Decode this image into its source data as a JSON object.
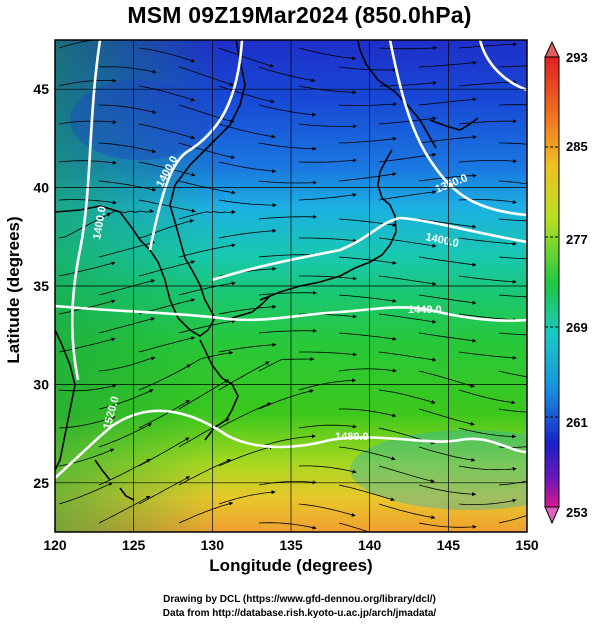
{
  "title": "MSM 09Z19Mar2024 (850.0hPa)",
  "map": {
    "xlabel": "Longitude (degrees)",
    "ylabel": "Latitude  (degrees)",
    "lon_range": [
      120,
      150
    ],
    "lat_range": [
      22.5,
      47.5
    ],
    "lon_ticks": [
      "120",
      "125",
      "130",
      "135",
      "140",
      "145",
      "150"
    ],
    "lat_ticks": [
      "25",
      "30",
      "35",
      "40",
      "45"
    ],
    "grid": true
  },
  "colorbar": {
    "labels": [
      "293",
      "285",
      "277",
      "269",
      "261",
      "253"
    ],
    "colors": [
      "#d11a8c",
      "#1a1acc",
      "#1a9cd8",
      "#19c8a8",
      "#1fc82a",
      "#e6e020",
      "#f0a020",
      "#e02020"
    ]
  },
  "contours": {
    "labels": [
      "1400.0",
      "1400.0",
      "1360.0",
      "1400.0",
      "1440.0",
      "1520.0",
      "1480.0"
    ]
  },
  "credits": {
    "line1": "Drawing by DCL (https://www.gfd-dennou.org/library/dcl/)",
    "line2": "Data from http://database.rish.kyoto-u.ac.jp/arch/jmadata/"
  }
}
